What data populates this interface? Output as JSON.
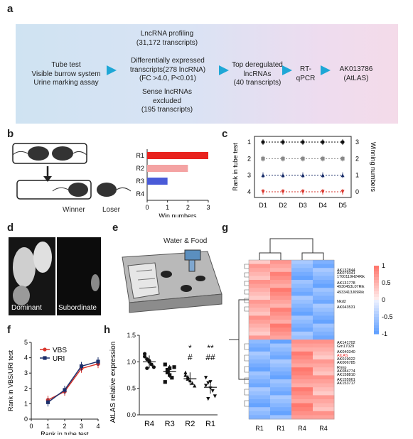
{
  "panel_labels": {
    "a": "a",
    "b": "b",
    "c": "c",
    "d": "d",
    "e": "e",
    "f": "f",
    "g": "g",
    "h": "h"
  },
  "panel_a": {
    "left_block": [
      "Tube test",
      "Visible burrow system",
      "Urine marking assay"
    ],
    "middle_top": [
      "LncRNA  profiling",
      "(31,172 transcripts)"
    ],
    "middle_main": [
      "Differentially expressed",
      "transcripts(278 lncRNA)",
      "(FC >4.0, P<0.01)"
    ],
    "middle_bottom": [
      "Sense lncRNAs",
      "excluded",
      "(195 transcripts)"
    ],
    "step3": [
      "Top deregulated",
      "lncRNAs",
      "(40 transcripts)"
    ],
    "step4": [
      "RT-",
      "qPCR"
    ],
    "step5": [
      "AK013786",
      "(AtLAS)"
    ],
    "arrow_color": "#1ea7d6"
  },
  "panel_b": {
    "winner_label": "Winner",
    "loser_label": "Loser",
    "chart_data": {
      "type": "bar",
      "orientation": "horizontal",
      "categories": [
        "R1",
        "R2",
        "R3",
        "R4"
      ],
      "values": [
        3,
        2,
        1,
        0
      ],
      "colors": [
        "#e8231f",
        "#f4a3a3",
        "#4a5bd8",
        "#bbbbbb"
      ],
      "xlabel": "Win numbers",
      "xlim": [
        0,
        3
      ],
      "xticks": [
        "0",
        "1",
        "2",
        "3"
      ]
    }
  },
  "panel_c": {
    "chart_data": {
      "type": "line",
      "categories": [
        "D1",
        "D2",
        "D3",
        "D4",
        "D5"
      ],
      "ylabel_left": "Rank in tube test",
      "ylabel_right": "Winning numbers",
      "left_ticks": [
        "1",
        "2",
        "3",
        "4"
      ],
      "right_ticks": [
        "3",
        "2",
        "1",
        "0"
      ],
      "series": [
        {
          "color": "#111111",
          "values": [
            3,
            3,
            3,
            3,
            3
          ],
          "marker": "circle"
        },
        {
          "color": "#888888",
          "values": [
            2,
            2,
            2,
            2,
            2
          ],
          "marker": "square"
        },
        {
          "color": "#1b2f6b",
          "values": [
            1,
            1,
            1,
            1,
            1
          ],
          "marker": "triangle-up"
        },
        {
          "color": "#d9342b",
          "values": [
            0,
            0,
            0,
            0,
            0
          ],
          "marker": "triangle-down"
        }
      ]
    }
  },
  "panel_d": {
    "left_caption": "Dominant",
    "right_caption": "Subordinate"
  },
  "panel_e": {
    "label": "Water & Food"
  },
  "panel_f": {
    "chart_data": {
      "type": "line",
      "x": [
        1,
        2,
        3,
        4
      ],
      "xlabel": "Rank in tube test",
      "ylabel": "Rank in VBS/URI test",
      "ylim": [
        0,
        5
      ],
      "yticks": [
        "0",
        "1",
        "2",
        "3",
        "4",
        "5"
      ],
      "xticks": [
        "0",
        "1",
        "2",
        "3",
        "4"
      ],
      "series": [
        {
          "name": "VBS",
          "color": "#d9342b",
          "values": [
            1.25,
            1.8,
            3.3,
            3.6
          ]
        },
        {
          "name": "URI",
          "color": "#1b2f6b",
          "values": [
            1.1,
            1.9,
            3.45,
            3.75
          ]
        }
      ]
    }
  },
  "panel_h": {
    "chart_data": {
      "type": "scatter",
      "categories": [
        "R4",
        "R3",
        "R2",
        "R1"
      ],
      "ylabel": "AtLAS relative expression",
      "ylim": [
        0,
        1.5
      ],
      "yticks": [
        "0.0",
        "0.5",
        "1.0",
        "1.5"
      ],
      "means": [
        1.0,
        0.82,
        0.68,
        0.52
      ],
      "points": [
        [
          1.15,
          1.05,
          1.0,
          0.95,
          0.9,
          1.1,
          0.88,
          1.02
        ],
        [
          0.95,
          0.85,
          0.75,
          0.7,
          0.9,
          0.62,
          0.8,
          0.88
        ],
        [
          0.8,
          0.72,
          0.65,
          0.6,
          0.55,
          0.75,
          0.68
        ],
        [
          0.7,
          0.6,
          0.5,
          0.45,
          0.35,
          0.55,
          0.3,
          0.62
        ]
      ],
      "markers": [
        "circle",
        "square",
        "triangle-up",
        "triangle-down"
      ],
      "annotations": [
        {
          "category": "R2",
          "lines": [
            "*",
            "#"
          ]
        },
        {
          "category": "R1",
          "lines": [
            "**",
            "##"
          ]
        }
      ]
    }
  },
  "panel_g": {
    "gene_labels_top": [
      "AK132844",
      "AK079341",
      "1700119H24Rik",
      "AK131778",
      "4930453L07Rik",
      "4933413J09Rik",
      "Nkd2",
      "AK043531"
    ],
    "gene_labels_bottom": [
      "AK141702",
      "Gm17029",
      "AK040340",
      "AtLAS",
      "AK019022",
      "AK006785",
      "Rmrp",
      "AK084774",
      "AK158810",
      "AK155961",
      "AK153717"
    ],
    "atlas_color": "#e8231f",
    "column_labels": [
      "R1",
      "R1",
      "R4",
      "R4"
    ],
    "colorbar_ticks": [
      "1",
      "0.5",
      "0",
      "-0.5",
      "-1"
    ]
  }
}
